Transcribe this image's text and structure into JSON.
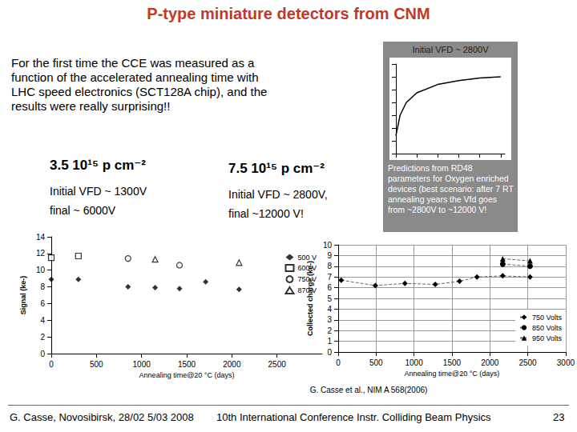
{
  "title": "P-type miniature detectors from CNM",
  "intro": "For the first time the CCE was measured as a function of the accelerated annealing time with LHC speed electronics (SCT128A chip), and the results were really surprising!!",
  "fluences": [
    {
      "label": "3.5 10¹⁵ p cm⁻²",
      "lines": [
        "Initial VFD ~ 1300V",
        "final ~ 6000V"
      ]
    },
    {
      "label": "7.5 10¹⁵ p cm⁻²",
      "lines": [
        "Initial VFD ~ 2800V,",
        "final ~12000 V!"
      ]
    }
  ],
  "inset": {
    "heading": "Initial VFD ~ 2800V",
    "note": "Predictions from RD48 parameters for Oxygen enriched devices (best scenario: after 7 RT annealing years the Vfd goes from ~2800V to ~12000 V!"
  },
  "citation": "G. Casse et al., NIM A 568(2006)",
  "footer": {
    "left": "G. Casse, Novosibirsk, 28/02 5/03 2008",
    "center": "10th International Conference Instr. Colliding Beam Physics",
    "page": "23"
  },
  "chart_data": [
    {
      "type": "scatter",
      "x_label": "Annealing time@20 °C (days)",
      "y_label": "Signal (ke-)",
      "xlim": [
        0,
        3000
      ],
      "xticks": [
        0,
        500,
        1000,
        1500,
        2000,
        2500
      ],
      "ylim": [
        0,
        14
      ],
      "yticks": [
        0,
        2,
        4,
        6,
        8,
        10,
        12,
        14
      ],
      "grid": false,
      "legend": "top right",
      "series": [
        {
          "name": "500 V",
          "color": "#000000",
          "marker": "diamond",
          "x": [
            0,
            300,
            850,
            1150,
            1420,
            1710,
            2080
          ],
          "values": [
            8.9,
            8.9,
            8.0,
            7.9,
            7.8,
            8.6,
            7.7
          ]
        },
        {
          "name": "600 V",
          "color": "#000000",
          "marker": "square-open",
          "x": [
            0,
            300
          ],
          "values": [
            11.5,
            11.7
          ]
        },
        {
          "name": "750 V",
          "color": "#000000",
          "marker": "circle-open",
          "x": [
            850,
            1420
          ],
          "values": [
            11.4,
            10.6
          ]
        },
        {
          "name": "870 V",
          "color": "#000000",
          "marker": "triangle-open",
          "x": [
            1150,
            2080
          ],
          "values": [
            11.3,
            10.9
          ]
        }
      ]
    },
    {
      "type": "line",
      "x_label": "Annealing time@20 °C (days)",
      "y_label": "Collected charge (ke-)",
      "xlim": [
        0,
        3000
      ],
      "xticks": [
        0,
        500,
        1000,
        1500,
        2000,
        2500,
        3000
      ],
      "ylim": [
        0,
        10
      ],
      "yticks": [
        0,
        1,
        2,
        3,
        4,
        5,
        6,
        7,
        8,
        9,
        10
      ],
      "grid": true,
      "legend": "bottom right",
      "line_style": "dashed",
      "series": [
        {
          "name": "750 Volts",
          "color": "#000000",
          "marker": "diamond",
          "x": [
            40,
            490,
            880,
            1280,
            1600,
            1830,
            2170,
            2530
          ],
          "values": [
            6.7,
            6.2,
            6.4,
            6.3,
            6.6,
            7.0,
            7.1,
            7.0
          ]
        },
        {
          "name": "850 Volts",
          "color": "#000000",
          "marker": "circle",
          "x": [
            2170,
            2530
          ],
          "values": [
            8.2,
            8.0
          ]
        },
        {
          "name": "950 Volts",
          "color": "#000000",
          "marker": "triangle",
          "x": [
            2170,
            2530
          ],
          "values": [
            8.7,
            8.5
          ]
        }
      ]
    },
    {
      "type": "line",
      "tick_labels": false,
      "grid": false,
      "xlim": [
        0,
        2600
      ],
      "xticks": [
        0,
        500,
        1000,
        1500,
        2000,
        2500
      ],
      "ylim": [
        0,
        14000
      ],
      "yticks": [
        0,
        2000,
        4000,
        6000,
        8000,
        10000,
        12000,
        14000
      ],
      "series": [
        {
          "color": "#000000",
          "x": [
            0,
            100,
            250,
            500,
            1000,
            1500,
            2000,
            2500
          ],
          "values": [
            2800,
            6000,
            8000,
            9500,
            10800,
            11400,
            11800,
            12000
          ]
        }
      ]
    }
  ]
}
